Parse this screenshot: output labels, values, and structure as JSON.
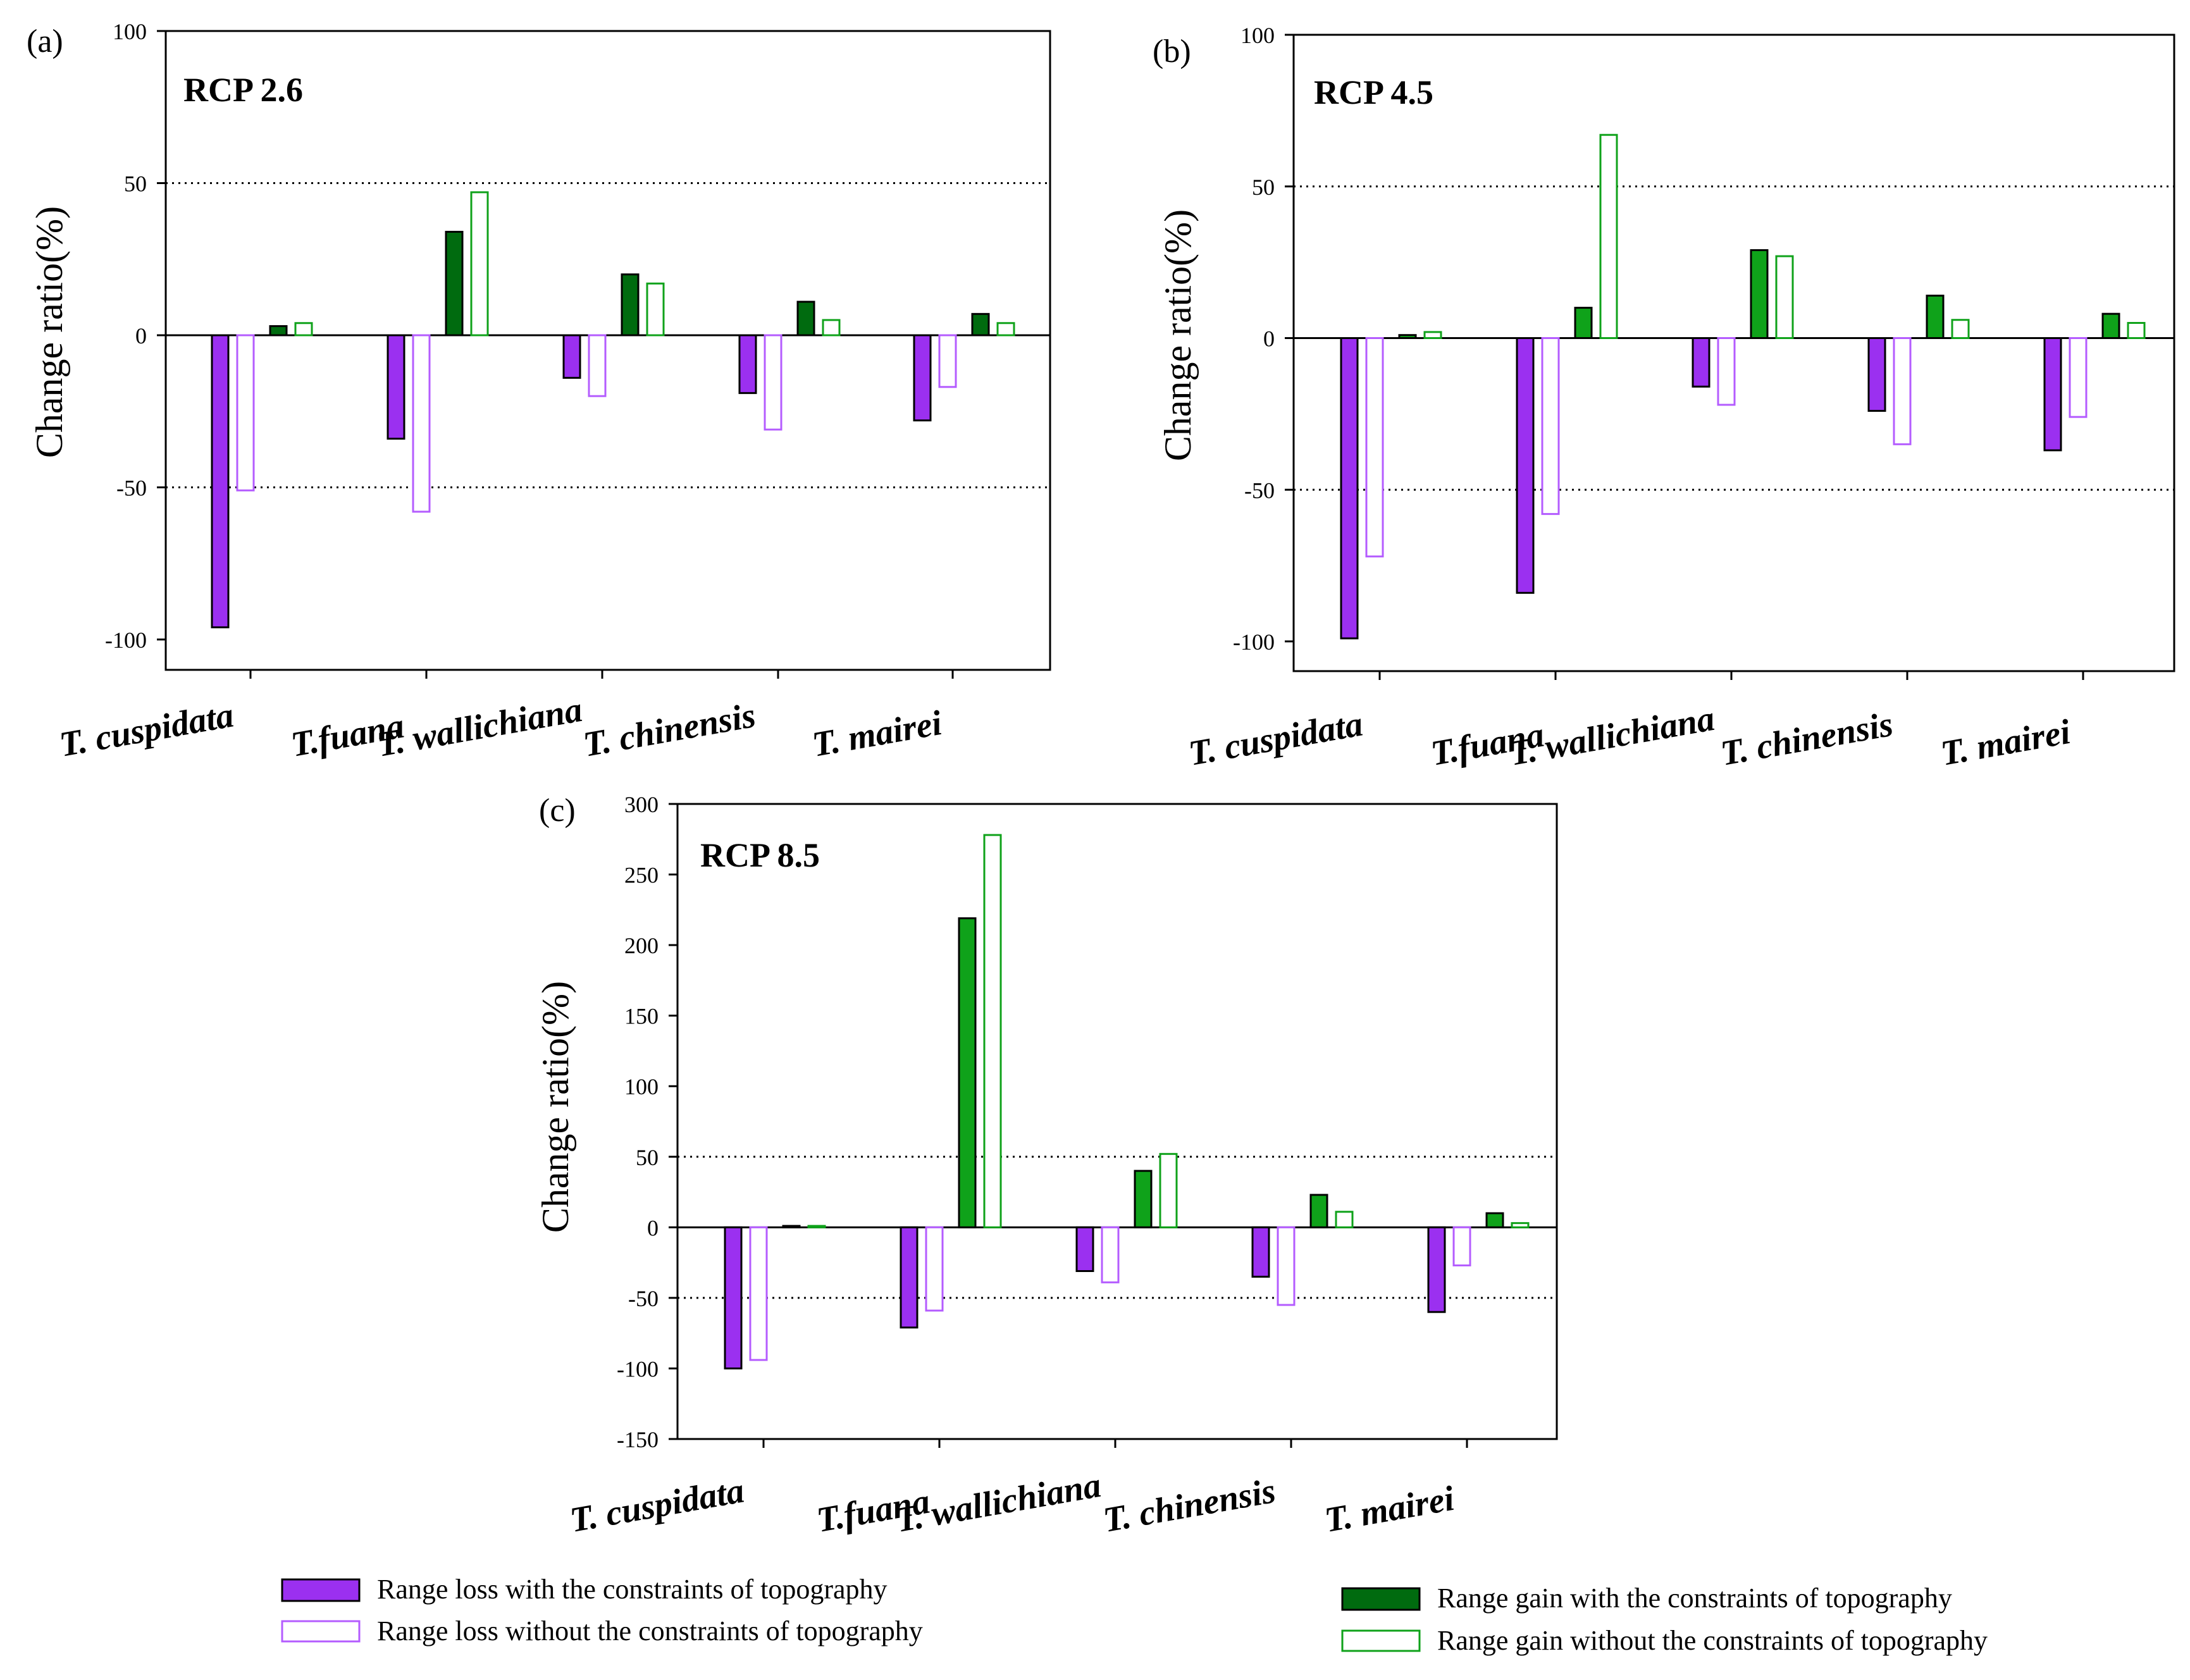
{
  "colors": {
    "loss_with": "#9b30f0",
    "loss_without": "#b45cff",
    "gain_with_a": "#006b0f",
    "gain_with_bc": "#0fa21a",
    "gain_without": "#0fa21a"
  },
  "chart_data": [
    {
      "type": "bar",
      "panel": "(a)",
      "title": "RCP 2.6",
      "ylabel": "Change ratio(%)",
      "ylim": [
        -110,
        100
      ],
      "yticks": [
        100,
        50,
        0,
        -50,
        -100
      ],
      "ytick_labels": [
        "100",
        "50",
        "0",
        "-50",
        "-100"
      ],
      "reference_lines": [
        50,
        -50
      ],
      "categories": [
        "T. cuspidata",
        "T.fuana",
        "T. wallichiana",
        "T. chinensis",
        "T. mairei"
      ],
      "series": [
        {
          "name": "Range loss with the constraints of topography",
          "values": [
            -96,
            -34,
            -14,
            -19,
            -28
          ]
        },
        {
          "name": "Range loss without the constraints of topography",
          "values": [
            -51,
            -58,
            -20,
            -31,
            -17
          ]
        },
        {
          "name": "Range gain with the constraints of topography",
          "values": [
            3,
            34,
            20,
            11,
            7
          ]
        },
        {
          "name": "Range gain without the constraints of topography",
          "values": [
            4,
            47,
            17,
            5,
            4
          ]
        }
      ]
    },
    {
      "type": "bar",
      "panel": "(b)",
      "title": "RCP 4.5",
      "ylabel": "Change ratio(%)",
      "ylim": [
        -110,
        100
      ],
      "yticks": [
        100,
        50,
        0,
        -50,
        -100
      ],
      "ytick_labels": [
        "100",
        "50",
        "0",
        "-50",
        "-100"
      ],
      "reference_lines": [
        50,
        -50
      ],
      "categories": [
        "T. cuspidata",
        "T.fuana",
        "T. wallichiana",
        "T. chinensis",
        "T. mairei"
      ],
      "series": [
        {
          "name": "Range loss with the constraints of topography",
          "values": [
            -99,
            -84,
            -16,
            -24,
            -37
          ]
        },
        {
          "name": "Range loss without the constraints of topography",
          "values": [
            -72,
            -58,
            -22,
            -35,
            -26
          ]
        },
        {
          "name": "Range gain with the constraints of topography",
          "values": [
            1,
            10,
            29,
            14,
            8
          ]
        },
        {
          "name": "Range gain without the constraints of topography",
          "values": [
            2,
            67,
            27,
            6,
            5
          ]
        }
      ]
    },
    {
      "type": "bar",
      "panel": "(c)",
      "title": "RCP 8.5",
      "ylabel": "Change ratio(%)",
      "ylim": [
        -150,
        300
      ],
      "yticks": [
        300,
        250,
        200,
        150,
        100,
        50,
        0,
        -50,
        -100,
        -150
      ],
      "ytick_labels": [
        "300",
        "250",
        "200",
        "150",
        "100",
        "50",
        "0",
        "-50",
        "-100",
        "-150"
      ],
      "reference_lines": [
        50,
        -50
      ],
      "categories": [
        "T. cuspidata",
        "T.fuana",
        "T. wallichiana",
        "T. chinensis",
        "T. mairei"
      ],
      "series": [
        {
          "name": "Range loss with the constraints of topography",
          "values": [
            -100,
            -71,
            -31,
            -35,
            -60
          ]
        },
        {
          "name": "Range loss without the constraints of topography",
          "values": [
            -94,
            -59,
            -39,
            -55,
            -27
          ]
        },
        {
          "name": "Range gain with the constraints of topography",
          "values": [
            1,
            219,
            40,
            23,
            10
          ]
        },
        {
          "name": "Range gain without the constraints of topography",
          "values": [
            1,
            278,
            52,
            11,
            3
          ]
        }
      ]
    }
  ],
  "legend": [
    {
      "label": "Range loss with the constraints of topography"
    },
    {
      "label": "Range loss without the constraints of topography"
    },
    {
      "label": "Range gain with the constraints of topography"
    },
    {
      "label": "Range gain without the constraints of topography"
    }
  ]
}
